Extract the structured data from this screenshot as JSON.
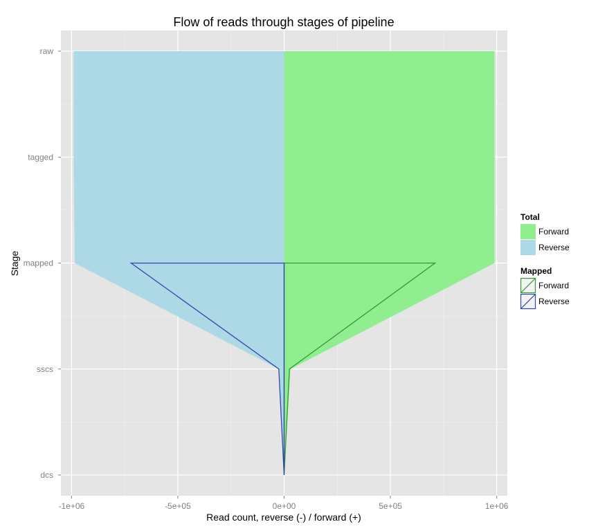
{
  "chart_data": {
    "type": "area",
    "title": "Flow of reads through stages of pipeline",
    "xlabel": "Read count, reverse (-) / forward (+)",
    "ylabel": "Stage",
    "xlim": [
      -1050000,
      1050000
    ],
    "x_ticks": [
      -1000000,
      -500000,
      0,
      500000,
      1000000
    ],
    "x_tick_labels": [
      "-1e+06",
      "-5e+05",
      "0e+00",
      "5e+05",
      "1e+06"
    ],
    "categories": [
      "raw",
      "tagged",
      "mapped",
      "sscs",
      "dcs"
    ],
    "grid": true,
    "legend_position": "right",
    "legend": [
      {
        "title": "Total",
        "items": [
          {
            "name": "Forward",
            "color": "#90ee90"
          },
          {
            "name": "Reverse",
            "color": "#add8e6"
          }
        ]
      },
      {
        "title": "Mapped",
        "items": [
          {
            "name": "Forward",
            "color": "#339933"
          },
          {
            "name": "Reverse",
            "color": "#3344aa"
          }
        ]
      }
    ],
    "series": [
      {
        "group": "Total",
        "name": "Forward",
        "kind": "area",
        "color": "#90ee90",
        "values": [
          990000,
          990000,
          990000,
          30000,
          0
        ]
      },
      {
        "group": "Total",
        "name": "Reverse",
        "kind": "area",
        "color": "#add8e6",
        "values": [
          -990000,
          -990000,
          -985000,
          -25000,
          0
        ]
      },
      {
        "group": "Mapped",
        "name": "Forward",
        "kind": "outline",
        "color": "#339933",
        "values": [
          null,
          null,
          710000,
          25000,
          0
        ]
      },
      {
        "group": "Mapped",
        "name": "Reverse",
        "kind": "outline",
        "color": "#3344aa",
        "values": [
          null,
          null,
          -720000,
          -25000,
          0
        ]
      }
    ]
  }
}
